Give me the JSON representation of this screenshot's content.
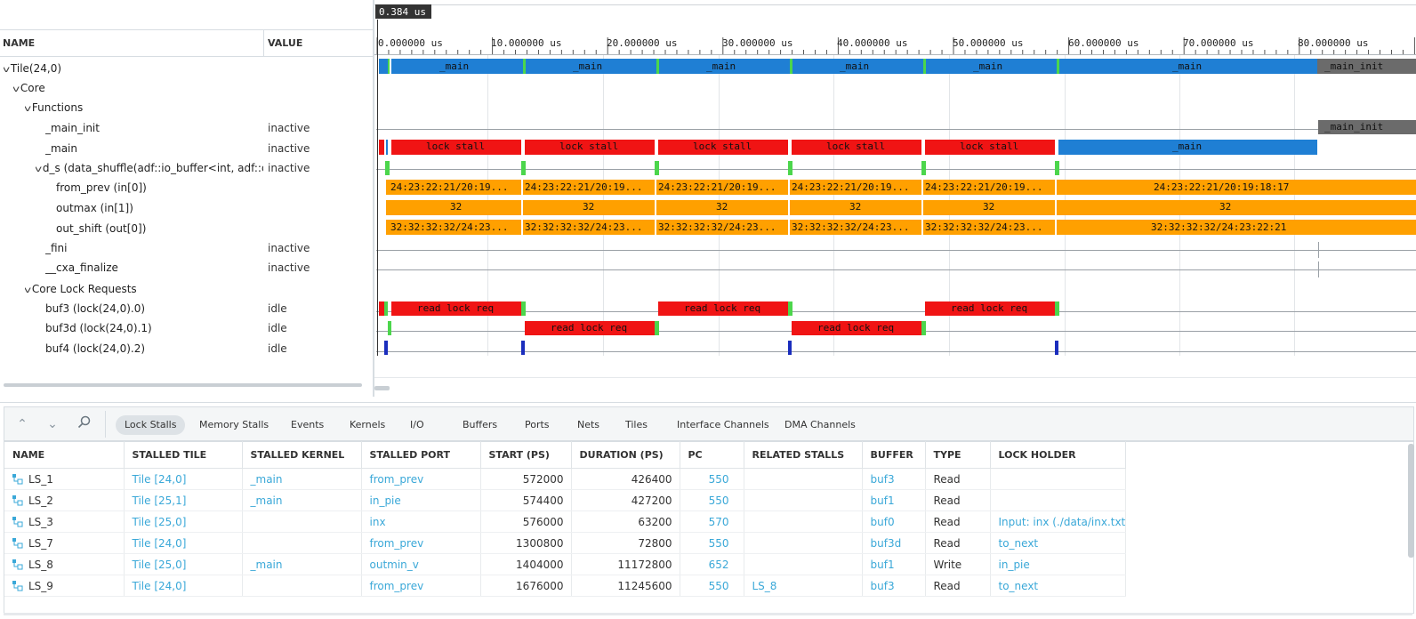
{
  "tree": {
    "col_name": "NAME",
    "col_value": "VALUE",
    "rows": [
      {
        "label": "Tile(24,0)",
        "value": ""
      },
      {
        "label": "Core",
        "value": ""
      },
      {
        "label": "Functions",
        "value": ""
      },
      {
        "label": "_main_init",
        "value": "inactive"
      },
      {
        "label": "_main",
        "value": "inactive"
      },
      {
        "label": "d_s (data_shuffle(adf::io_buffer<int, adf::dire",
        "value": "inactive"
      },
      {
        "label": "from_prev (in[0])",
        "value": ""
      },
      {
        "label": "outmax (in[1])",
        "value": ""
      },
      {
        "label": "out_shift (out[0])",
        "value": ""
      },
      {
        "label": "_fini",
        "value": "inactive"
      },
      {
        "label": "__cxa_finalize",
        "value": "inactive"
      },
      {
        "label": "Core Lock Requests",
        "value": ""
      },
      {
        "label": "buf3 (lock(24,0).0)",
        "value": "idle"
      },
      {
        "label": "buf3d (lock(24,0).1)",
        "value": "idle"
      },
      {
        "label": "buf4 (lock(24,0).2)",
        "value": "idle"
      }
    ]
  },
  "waveform": {
    "cursor_time": "0.384 us",
    "ticks": [
      "0.000000 us",
      "10.000000 us",
      "20.000000 us",
      "30.000000 us",
      "40.000000 us",
      "50.000000 us",
      "60.000000 us",
      "70.000000 us",
      "80.000000 us"
    ],
    "labels": {
      "main": "_main",
      "main_init": "_main_init",
      "lock_stall": "lock stall",
      "from_prev_short": "24:23:22:21/20:19...",
      "from_prev_full": "24:23:22:21/20:19:18:17",
      "outmax": "32",
      "out_shift_short": "32:32:32:32/24:23...",
      "out_shift_full": "32:32:32:32/24:23:22:21",
      "read_lock_req": "read lock req"
    },
    "colors": {
      "blue": "#1f7fd4",
      "red": "#f01414",
      "orange": "#ffa000",
      "green": "#4cd64c",
      "gray": "#6b6b6b",
      "dark_blue": "#1a2dbd"
    }
  },
  "bottom": {
    "nav": {
      "up_icon": "double-chevron-up-icon",
      "down_icon": "double-chevron-down-icon",
      "search_icon": "search-icon"
    },
    "tabs": [
      "Lock Stalls",
      "Memory Stalls",
      "Events",
      "Kernels",
      "I/O",
      "Buffers",
      "Ports",
      "Nets",
      "Tiles",
      "Interface Channels",
      "DMA Channels"
    ],
    "active_tab": "Lock Stalls",
    "columns": [
      "NAME",
      "STALLED TILE",
      "STALLED KERNEL",
      "STALLED PORT",
      "START (PS)",
      "DURATION (PS)",
      "PC",
      "RELATED STALLS",
      "BUFFER",
      "TYPE",
      "LOCK HOLDER"
    ],
    "rows": [
      {
        "name": "LS_1",
        "tile": "Tile [24,0]",
        "kernel": "_main",
        "port": "from_prev",
        "start": "572000",
        "duration": "426400",
        "pc": "550",
        "related": "",
        "buffer": "buf3",
        "type": "Read",
        "holder": ""
      },
      {
        "name": "LS_2",
        "tile": "Tile [25,1]",
        "kernel": "_main",
        "port": "in_pie",
        "start": "574400",
        "duration": "427200",
        "pc": "550",
        "related": "",
        "buffer": "buf1",
        "type": "Read",
        "holder": ""
      },
      {
        "name": "LS_3",
        "tile": "Tile [25,0]",
        "kernel": "",
        "port": "inx",
        "start": "576000",
        "duration": "63200",
        "pc": "570",
        "related": "",
        "buffer": "buf0",
        "type": "Read",
        "holder": "Input: inx (./data/inx.txt"
      },
      {
        "name": "LS_7",
        "tile": "Tile [24,0]",
        "kernel": "",
        "port": "from_prev",
        "start": "1300800",
        "duration": "72800",
        "pc": "550",
        "related": "",
        "buffer": "buf3d",
        "type": "Read",
        "holder": "to_next"
      },
      {
        "name": "LS_8",
        "tile": "Tile [25,0]",
        "kernel": "_main",
        "port": "outmin_v",
        "start": "1404000",
        "duration": "11172800",
        "pc": "652",
        "related": "",
        "buffer": "buf1",
        "type": "Write",
        "holder": "in_pie"
      },
      {
        "name": "LS_9",
        "tile": "Tile [24,0]",
        "kernel": "",
        "port": "from_prev",
        "start": "1676000",
        "duration": "11245600",
        "pc": "550",
        "related": "LS_8",
        "buffer": "buf3",
        "type": "Read",
        "holder": "to_next"
      }
    ]
  }
}
